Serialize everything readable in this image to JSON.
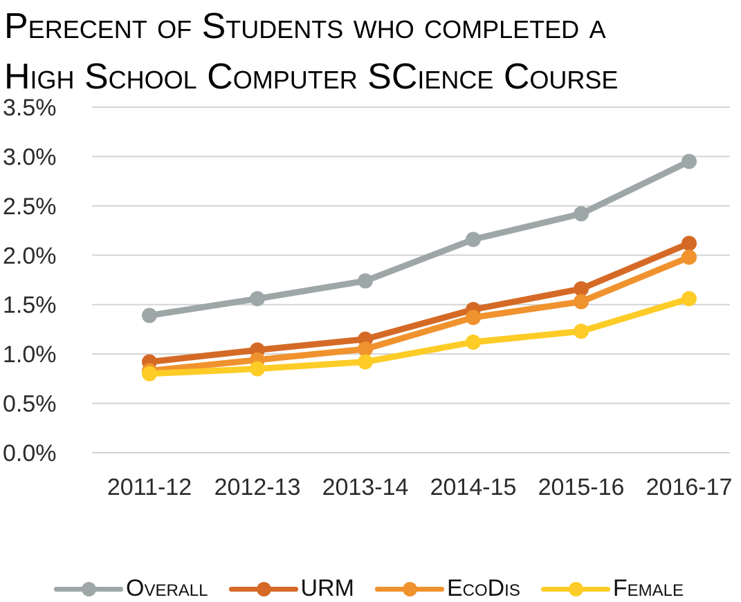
{
  "chart_data": {
    "type": "line",
    "title_line1": "Perecent of Students who completed a",
    "title_line2": "High School Computer SCience Course",
    "xlabel": "",
    "ylabel": "",
    "categories": [
      "2011-12",
      "2012-13",
      "2013-14",
      "2014-15",
      "2015-16",
      "2016-17"
    ],
    "y_ticks": [
      "0.0%",
      "0.5%",
      "1.0%",
      "1.5%",
      "2.0%",
      "2.5%",
      "3.0%",
      "3.5%"
    ],
    "ylim": [
      0,
      3.5
    ],
    "grid": true,
    "legend_position": "bottom",
    "series": [
      {
        "name": "Overall",
        "color": "#9ea7a7",
        "values": [
          1.39,
          1.56,
          1.74,
          2.16,
          2.42,
          2.95
        ]
      },
      {
        "name": "URM",
        "color": "#d46a26",
        "values": [
          0.92,
          1.04,
          1.15,
          1.45,
          1.66,
          2.12
        ]
      },
      {
        "name": "EcoDis",
        "color": "#f0922d",
        "values": [
          0.83,
          0.94,
          1.05,
          1.37,
          1.53,
          1.98
        ]
      },
      {
        "name": "Female",
        "color": "#fdcc26",
        "values": [
          0.8,
          0.85,
          0.92,
          1.12,
          1.23,
          1.56
        ]
      }
    ]
  }
}
